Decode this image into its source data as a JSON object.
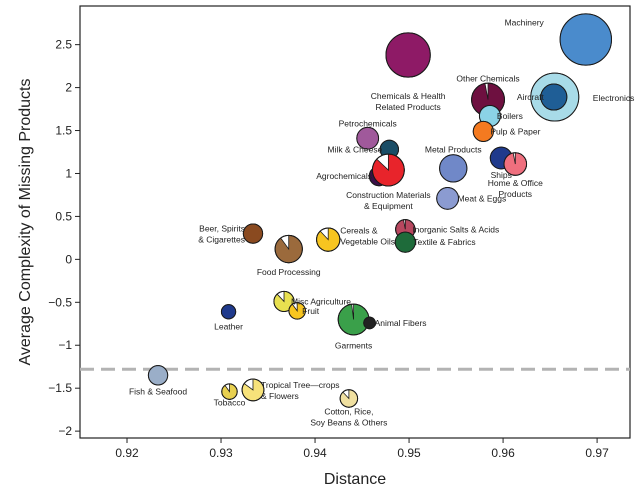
{
  "chart_data": {
    "type": "scatter",
    "title": "",
    "xlabel": "Distance",
    "ylabel": "Average Complexity of Missing Products",
    "xlim": [
      0.915,
      0.9735
    ],
    "ylim": [
      -2.08,
      2.95
    ],
    "xticks": [
      0.92,
      0.93,
      0.94,
      0.95,
      0.96,
      0.97
    ],
    "xtick_labels": [
      "0.92",
      "0.93",
      "0.94",
      "0.95",
      "0.96",
      "0.97"
    ],
    "yticks": [
      2.5,
      2,
      1.5,
      1,
      0.5,
      0,
      -0.5,
      -1,
      -1.5,
      -2
    ],
    "ytick_labels": [
      "2.5",
      "2",
      "1.5",
      "1",
      "0.5",
      "0",
      "−0.5",
      "−1",
      "−1.5",
      "−2"
    ],
    "grid": false,
    "reference_line": {
      "y": -1.28,
      "style": "dashed",
      "color": "#b3b3b3"
    },
    "points": [
      {
        "label": [
          "Machinery"
        ],
        "x": 0.9688,
        "y": 2.56,
        "size": 3.9,
        "color": "#4a8bcc",
        "share": 1.0
      },
      {
        "label": [
          "Electronics"
        ],
        "x": 0.9655,
        "y": 1.89,
        "size": 3.4,
        "color": "#a8dbe8",
        "share": 1.0
      },
      {
        "label": [
          "Aircraft"
        ],
        "x": 0.9654,
        "y": 1.89,
        "size": 1.0,
        "color": "#1f5e96",
        "share": 1.0
      },
      {
        "label": [
          "Chemicals & Health",
          "Related Products"
        ],
        "x": 0.9499,
        "y": 2.38,
        "size": 2.9,
        "color": "#8e1a66",
        "share": 1.0
      },
      {
        "label": [
          "Other Chemicals"
        ],
        "x": 0.9584,
        "y": 1.86,
        "size": 1.6,
        "color": "#6e1040",
        "share": 0.97
      },
      {
        "label": [
          "Boilers"
        ],
        "x": 0.9586,
        "y": 1.67,
        "size": 0.65,
        "color": "#8bd3e6",
        "share": 1.0
      },
      {
        "label": [
          "Pulp & Paper"
        ],
        "x": 0.9579,
        "y": 1.49,
        "size": 0.6,
        "color": "#f47a20",
        "share": 1.0
      },
      {
        "label": [
          "Petrochemicals"
        ],
        "x": 0.9456,
        "y": 1.41,
        "size": 0.7,
        "color": "#a0599b",
        "share": 1.0
      },
      {
        "label": [
          "Milk & Cheese"
        ],
        "x": 0.9479,
        "y": 1.28,
        "size": 0.5,
        "color": "#1a4d66",
        "share": 1.0
      },
      {
        "label": [
          "Metal Products"
        ],
        "x": 0.9547,
        "y": 1.06,
        "size": 1.1,
        "color": "#7088c8",
        "share": 1.0
      },
      {
        "label": [
          "Ships"
        ],
        "x": 0.9598,
        "y": 1.18,
        "size": 0.7,
        "color": "#1f3a8c",
        "share": 1.0
      },
      {
        "label": [
          "Home & Office",
          "Products"
        ],
        "x": 0.9613,
        "y": 1.11,
        "size": 0.75,
        "color": "#ef6f7e",
        "share": 0.97
      },
      {
        "label": [
          "Agrochemicals"
        ],
        "x": 0.9468,
        "y": 0.97,
        "size": 0.55,
        "color": "#3a1048",
        "share": 1.0
      },
      {
        "label": [
          "Construction Materials",
          "& Equipment"
        ],
        "x": 0.9478,
        "y": 1.04,
        "size": 1.5,
        "color": "#e8242b",
        "share": 0.87
      },
      {
        "label": [
          "Meat & Eggs"
        ],
        "x": 0.9541,
        "y": 0.71,
        "size": 0.7,
        "color": "#8b9bd1",
        "share": 1.0
      },
      {
        "label": [
          "Inorganic Salts & Acids"
        ],
        "x": 0.9496,
        "y": 0.35,
        "size": 0.55,
        "color": "#b8475f",
        "share": 0.97
      },
      {
        "label": [
          "Textile & Fabrics"
        ],
        "x": 0.9496,
        "y": 0.2,
        "size": 0.6,
        "color": "#1e6b3a",
        "share": 1.0
      },
      {
        "label": [
          "Beer, Spirits",
          "& Cigarettes"
        ],
        "x": 0.9334,
        "y": 0.3,
        "size": 0.55,
        "color": "#8a4a20",
        "share": 1.0
      },
      {
        "label": [
          "Cereals &",
          "Vegetable Oils"
        ],
        "x": 0.9414,
        "y": 0.23,
        "size": 0.8,
        "color": "#f7c520",
        "share": 0.88
      },
      {
        "label": [
          "Food Processing"
        ],
        "x": 0.9372,
        "y": 0.12,
        "size": 1.1,
        "color": "#9b6a3c",
        "share": 0.9
      },
      {
        "label": [
          "Misc Agriculture"
        ],
        "x": 0.9367,
        "y": -0.49,
        "size": 0.6,
        "color": "#e8e050",
        "share": 0.88
      },
      {
        "label": [
          "Fruit"
        ],
        "x": 0.9381,
        "y": -0.6,
        "size": 0.4,
        "color": "#f7c520",
        "share": 0.9
      },
      {
        "label": [
          "Leather"
        ],
        "x": 0.9308,
        "y": -0.61,
        "size": 0.3,
        "color": "#1f3a8c",
        "share": 1.0
      },
      {
        "label": [
          "Garments"
        ],
        "x": 0.9441,
        "y": -0.7,
        "size": 1.4,
        "color": "#3aa04a",
        "share": 0.98
      },
      {
        "label": [
          "Animal Fibers"
        ],
        "x": 0.9458,
        "y": -0.74,
        "size": 0.2,
        "color": "#222222",
        "share": 1.0
      },
      {
        "label": [
          "Fish & Seafood"
        ],
        "x": 0.9233,
        "y": -1.35,
        "size": 0.55,
        "color": "#9aaec8",
        "share": 1.0
      },
      {
        "label": [
          "Tobacco"
        ],
        "x": 0.9309,
        "y": -1.54,
        "size": 0.35,
        "color": "#e8d050",
        "share": 0.9
      },
      {
        "label": [
          "Tropical Tree—crops",
          "& Flowers"
        ],
        "x": 0.9334,
        "y": -1.52,
        "size": 0.7,
        "color": "#f7e27a",
        "share": 0.85
      },
      {
        "label": [
          "Cotton, Rice,",
          "Soy Beans & Others"
        ],
        "x": 0.9436,
        "y": -1.62,
        "size": 0.45,
        "color": "#f0e0a0",
        "share": 0.88
      }
    ]
  }
}
